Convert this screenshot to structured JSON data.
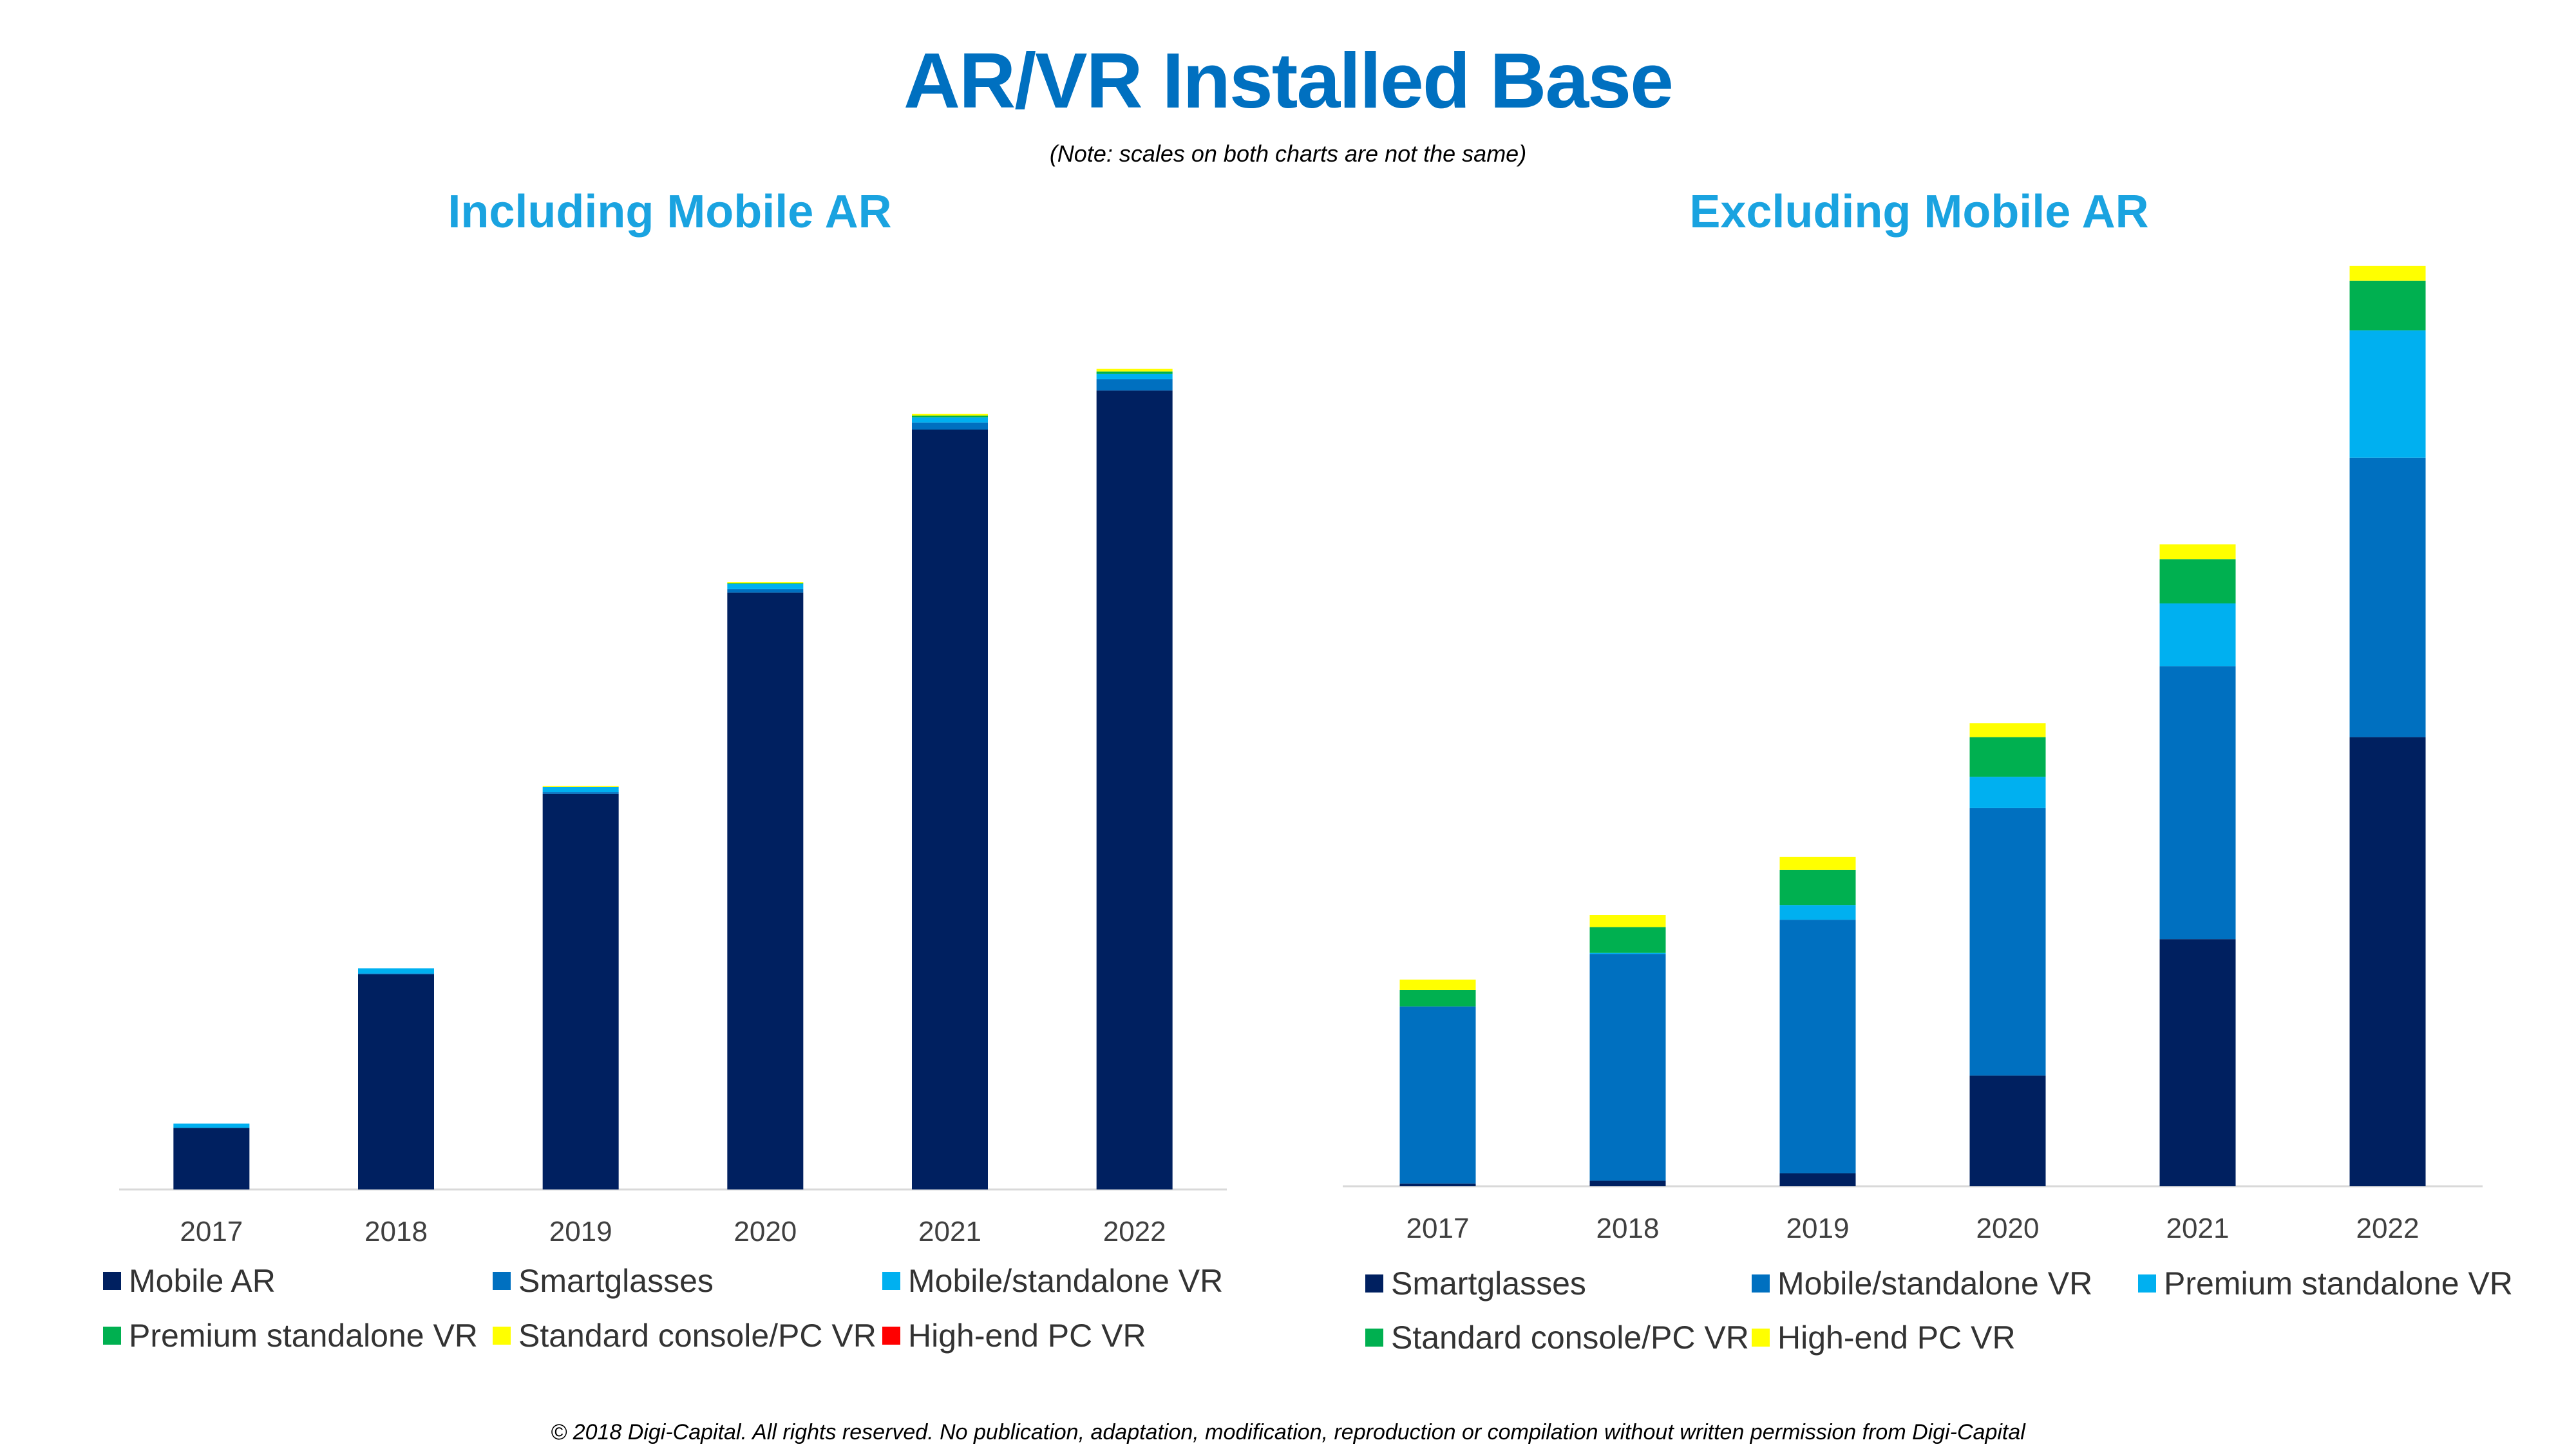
{
  "title": "AR/VR Installed Base",
  "note": "(Note: scales on both charts are not the same)",
  "footer": "© 2018 Digi-Capital. All rights reserved. No publication, adaptation, modification, reproduction or compilation without written permission from Digi-Capital",
  "colors": {
    "Mobile AR": "#002060",
    "Smartglasses": "#0070C0",
    "Mobile/standalone VR": "#00B0F0",
    "Premium standalone VR": "#00B050",
    "Standard console/PC VR": "#FFFF00",
    "High-end PC VR": "#FF0000"
  },
  "chart_data": [
    {
      "type": "bar",
      "stacked": true,
      "title": "Including Mobile AR",
      "categories": [
        "2017",
        "2018",
        "2019",
        "2020",
        "2021",
        "2022"
      ],
      "ylim": [
        0,
        100
      ],
      "grid": false,
      "legend": "bottom",
      "series": [
        {
          "name": "Mobile AR",
          "color": "#002060",
          "values": [
            7.1,
            24.8,
            45.6,
            68.8,
            87.6,
            92.1
          ]
        },
        {
          "name": "Smartglasses",
          "color": "#0070C0",
          "values": [
            0.0,
            0.1,
            0.2,
            0.4,
            0.8,
            1.3
          ]
        },
        {
          "name": "Mobile/standalone VR",
          "color": "#00B0F0",
          "values": [
            0.5,
            0.6,
            0.6,
            0.6,
            0.6,
            0.6
          ]
        },
        {
          "name": "Premium standalone VR",
          "color": "#00B050",
          "values": [
            0.0,
            0.0,
            0.0,
            0.1,
            0.2,
            0.3
          ]
        },
        {
          "name": "Standard console/PC VR",
          "color": "#FFFF00",
          "values": [
            0.0,
            0.0,
            0.1,
            0.1,
            0.2,
            0.3
          ]
        },
        {
          "name": "High-end PC VR",
          "color": "#FF0000",
          "values": [
            0.0,
            0.0,
            0.0,
            0.0,
            0.0,
            0.0
          ]
        }
      ]
    },
    {
      "type": "bar",
      "stacked": true,
      "title": "Excluding Mobile AR",
      "categories": [
        "2017",
        "2018",
        "2019",
        "2020",
        "2021",
        "2022"
      ],
      "ylim": [
        0,
        100
      ],
      "grid": false,
      "legend": "bottom",
      "series": [
        {
          "name": "Smartglasses",
          "color": "#002060",
          "values": [
            0.3,
            0.6,
            1.4,
            12.0,
            26.8,
            48.7
          ]
        },
        {
          "name": "Mobile/standalone VR",
          "color": "#0070C0",
          "values": [
            19.2,
            24.6,
            27.5,
            29.0,
            29.6,
            30.3
          ]
        },
        {
          "name": "Premium standalone VR",
          "color": "#00B0F0",
          "values": [
            0.0,
            0.1,
            1.6,
            3.4,
            6.8,
            13.8
          ]
        },
        {
          "name": "Standard console/PC VR",
          "color": "#00B050",
          "values": [
            1.8,
            2.8,
            3.8,
            4.3,
            4.8,
            5.4
          ]
        },
        {
          "name": "High-end PC VR",
          "color": "#FFFF00",
          "values": [
            1.1,
            1.3,
            1.4,
            1.5,
            1.6,
            1.6
          ]
        }
      ]
    }
  ]
}
